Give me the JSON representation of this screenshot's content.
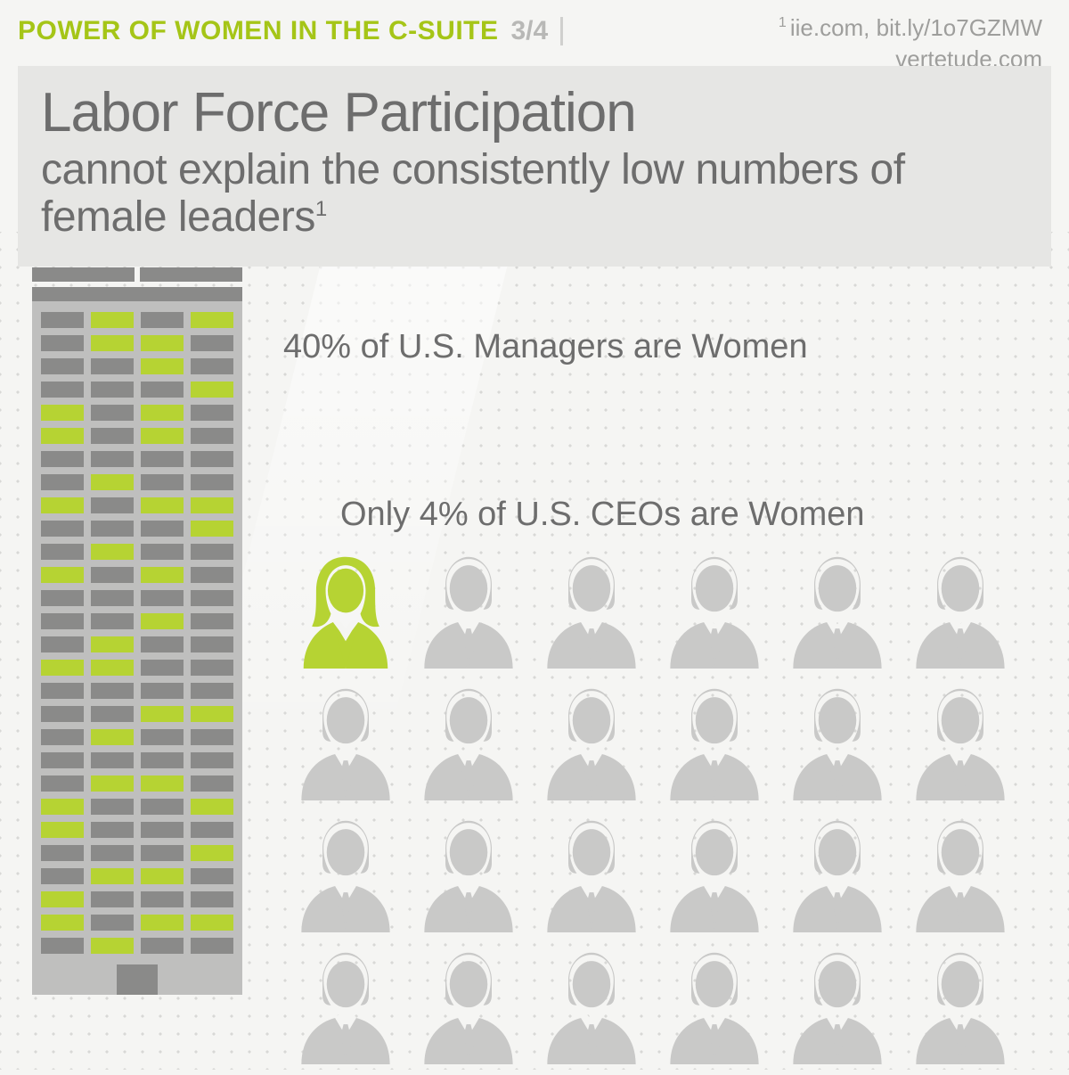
{
  "colors": {
    "accent": "#a5c517",
    "accent_light": "#b6d333",
    "muted": "#b8b8b6",
    "text": "#6d6d6d",
    "building_fill": "#bfbfbe",
    "building_dark": "#8a8a89",
    "bg": "#f5f5f3",
    "title_bg": "#e6e6e4",
    "person_gray": "#c9c9c8"
  },
  "header": {
    "title": "POWER OF WOMEN IN THE C-SUITE",
    "page": "3/4"
  },
  "credits": {
    "line1_sup": "1",
    "line1": "iie.com, bit.ly/1o7GZMW",
    "line2": "vertetude.com"
  },
  "title": {
    "main": "Labor Force Participation",
    "sub": "cannot explain the consistently low numbers of female leaders",
    "sub_sup": "1"
  },
  "stats": {
    "managers": "40% of U.S. Managers are Women",
    "ceos": "Only 4% of U.S. CEOs are Women"
  },
  "building": {
    "rows": 28,
    "cols": 4,
    "lit_windows": [
      [
        0,
        1
      ],
      [
        0,
        3
      ],
      [
        1,
        1
      ],
      [
        1,
        2
      ],
      [
        2,
        2
      ],
      [
        3,
        3
      ],
      [
        4,
        0
      ],
      [
        4,
        2
      ],
      [
        5,
        0
      ],
      [
        5,
        2
      ],
      [
        7,
        1
      ],
      [
        8,
        0
      ],
      [
        8,
        2
      ],
      [
        8,
        3
      ],
      [
        9,
        3
      ],
      [
        10,
        1
      ],
      [
        11,
        0
      ],
      [
        11,
        2
      ],
      [
        13,
        2
      ],
      [
        14,
        1
      ],
      [
        15,
        0
      ],
      [
        15,
        1
      ],
      [
        17,
        2
      ],
      [
        17,
        3
      ],
      [
        18,
        1
      ],
      [
        20,
        1
      ],
      [
        20,
        2
      ],
      [
        21,
        0
      ],
      [
        21,
        3
      ],
      [
        22,
        0
      ],
      [
        23,
        3
      ],
      [
        24,
        1
      ],
      [
        24,
        2
      ],
      [
        25,
        0
      ],
      [
        26,
        0
      ],
      [
        26,
        2
      ],
      [
        26,
        3
      ],
      [
        27,
        1
      ]
    ]
  },
  "people": {
    "rows": 4,
    "cols": 6,
    "total": 24,
    "female_index": 0
  }
}
